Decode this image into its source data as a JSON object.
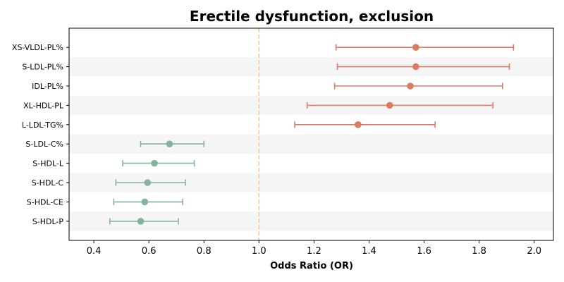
{
  "chart_data": {
    "type": "forest",
    "title": "Erectile dysfunction, exclusion",
    "xlabel": "Odds Ratio (OR)",
    "ylabel": "",
    "xlim": [
      0.31,
      2.07
    ],
    "xticks": [
      0.4,
      0.6,
      0.8,
      1.0,
      1.2,
      1.4,
      1.6,
      1.8,
      2.0
    ],
    "xtick_labels": [
      "0.4",
      "0.6",
      "0.8",
      "1.0",
      "1.2",
      "1.4",
      "1.6",
      "1.8",
      "2.0"
    ],
    "reference_line": 1.0,
    "reference_color": "#f5c382",
    "colors": {
      "positive": "#dc7b63",
      "negative": "#86b49b",
      "stripe": "#f5f5f5"
    },
    "grid": false,
    "rows": [
      {
        "label": "XS-VLDL-PL%",
        "or": 1.57,
        "lower": 1.28,
        "upper": 1.925,
        "group": "positive"
      },
      {
        "label": "S-LDL-PL%",
        "or": 1.57,
        "lower": 1.285,
        "upper": 1.91,
        "group": "positive"
      },
      {
        "label": "IDL-PL%",
        "or": 1.55,
        "lower": 1.275,
        "upper": 1.885,
        "group": "positive"
      },
      {
        "label": "XL-HDL-PL",
        "or": 1.475,
        "lower": 1.175,
        "upper": 1.85,
        "group": "positive"
      },
      {
        "label": "L-LDL-TG%",
        "or": 1.36,
        "lower": 1.13,
        "upper": 1.64,
        "group": "positive"
      },
      {
        "label": "S-LDL-C%",
        "or": 0.675,
        "lower": 0.57,
        "upper": 0.8,
        "group": "negative"
      },
      {
        "label": "S-HDL-L",
        "or": 0.62,
        "lower": 0.505,
        "upper": 0.765,
        "group": "negative"
      },
      {
        "label": "S-HDL-C",
        "or": 0.595,
        "lower": 0.48,
        "upper": 0.733,
        "group": "negative"
      },
      {
        "label": "S-HDL-CE",
        "or": 0.585,
        "lower": 0.472,
        "upper": 0.723,
        "group": "negative"
      },
      {
        "label": "S-HDL-P",
        "or": 0.57,
        "lower": 0.458,
        "upper": 0.707,
        "group": "negative"
      }
    ]
  }
}
